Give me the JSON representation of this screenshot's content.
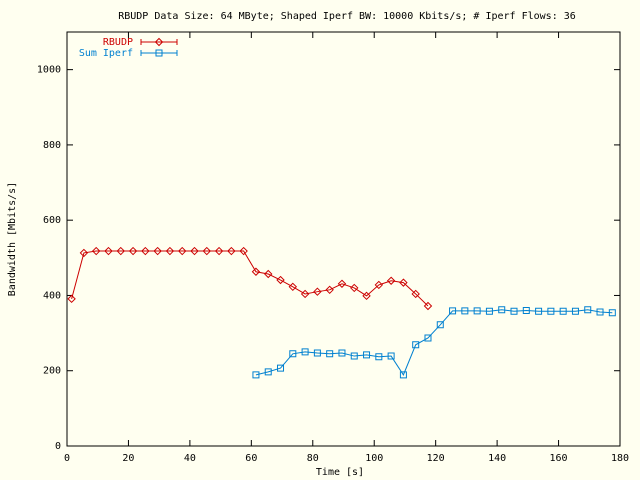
{
  "chart_data": {
    "type": "line",
    "title": "RBUDP Data Size: 64 MByte; Shaped Iperf BW: 10000 Kbits/s; # Iperf Flows: 36",
    "x_label": "Time [s]",
    "y_label": "Bandwidth [Mbits/s]",
    "xlim": [
      0,
      180
    ],
    "xticks": [
      0,
      20,
      40,
      60,
      80,
      100,
      120,
      140,
      160,
      180
    ],
    "ylim": [
      0,
      1100
    ],
    "yticks": [
      0,
      200,
      400,
      600,
      800,
      1000
    ],
    "legend": "top-left",
    "series": [
      {
        "name": "RBUDP",
        "color": "#cc0000",
        "marker": "diamond",
        "x": [
          1.5,
          5.5,
          9.5,
          13.5,
          17.5,
          21.5,
          25.5,
          29.5,
          33.5,
          37.5,
          41.5,
          45.5,
          49.5,
          53.5,
          57.5,
          61.5,
          65.5,
          69.5,
          73.5,
          77.5,
          81.5,
          85.5,
          89.5,
          93.5,
          97.5,
          101.5,
          105.5,
          109.5,
          113.5,
          117.5
        ],
        "values": [
          391,
          513,
          518,
          518,
          518,
          518,
          518,
          518,
          518,
          518,
          518,
          518,
          518,
          518,
          518,
          463,
          457,
          441,
          423,
          404,
          410,
          415,
          431,
          420,
          399,
          428,
          439,
          434,
          404,
          372
        ]
      },
      {
        "name": "Sum Iperf",
        "color": "#0080d0",
        "marker": "square",
        "x": [
          61.5,
          65.5,
          69.5,
          73.5,
          77.5,
          81.5,
          85.5,
          89.5,
          93.5,
          97.5,
          101.5,
          105.5,
          109.5,
          113.5,
          117.5,
          121.5,
          125.5,
          129.5,
          133.5,
          137.5,
          141.5,
          145.5,
          149.5,
          153.5,
          157.5,
          161.5,
          165.5,
          169.5,
          173.5,
          177.5
        ],
        "values": [
          189,
          197,
          207,
          245,
          250,
          247,
          245,
          247,
          239,
          242,
          237,
          239,
          189,
          269,
          287,
          322,
          359,
          359,
          359,
          358,
          362,
          358,
          360,
          358,
          358,
          358,
          358,
          362,
          356,
          354
        ]
      }
    ]
  }
}
